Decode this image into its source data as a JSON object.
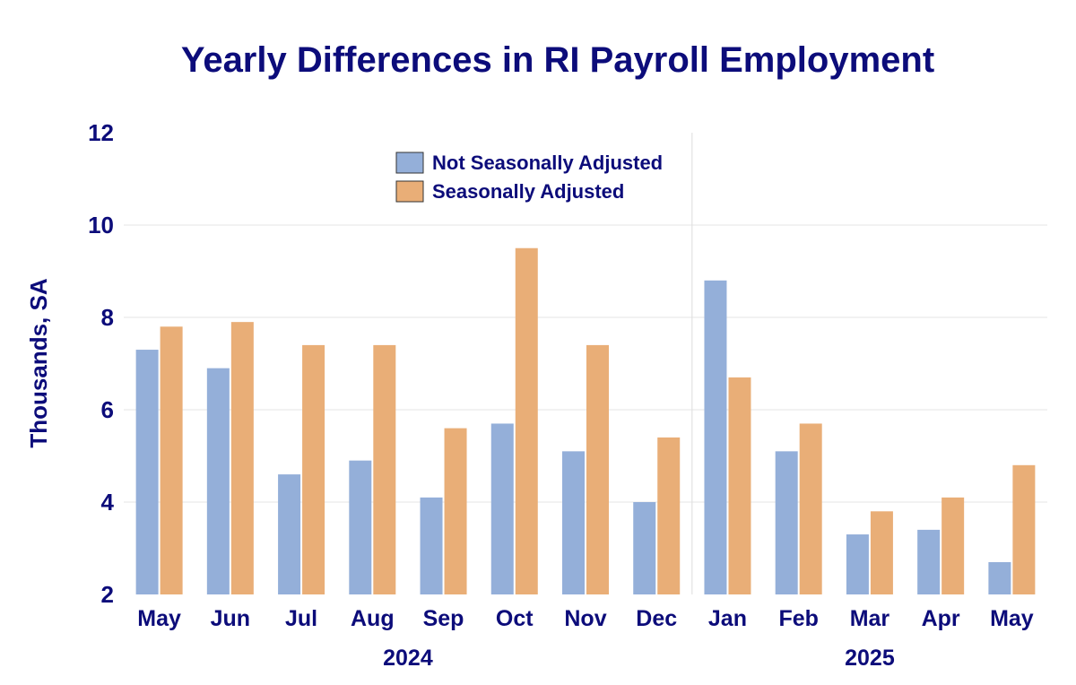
{
  "chart_data": {
    "type": "bar",
    "title": "Yearly Differences in RI Payroll Employment",
    "xlabel": "",
    "ylabel": "Thousands, SA",
    "ylim": [
      2,
      12
    ],
    "yticks": [
      2,
      4,
      6,
      8,
      10,
      12
    ],
    "grid": true,
    "legend_position": "top-center",
    "categories": [
      "May",
      "Jun",
      "Jul",
      "Aug",
      "Sep",
      "Oct",
      "Nov",
      "Dec",
      "Jan",
      "Feb",
      "Mar",
      "Apr",
      "May"
    ],
    "year_groups": [
      {
        "label": "2024",
        "start": 0,
        "end": 7
      },
      {
        "label": "2025",
        "start": 8,
        "end": 12
      }
    ],
    "series": [
      {
        "name": "Not Seasonally Adjusted",
        "color": "#94afd9",
        "values": [
          7.3,
          6.9,
          4.6,
          4.9,
          4.1,
          5.7,
          5.1,
          4.0,
          8.8,
          5.1,
          3.3,
          3.4,
          2.7
        ]
      },
      {
        "name": "Seasonally Adjusted",
        "color": "#e9ae77",
        "values": [
          7.8,
          7.9,
          7.4,
          7.4,
          5.6,
          9.5,
          7.4,
          5.4,
          6.7,
          5.7,
          3.8,
          4.1,
          4.8
        ]
      }
    ]
  }
}
